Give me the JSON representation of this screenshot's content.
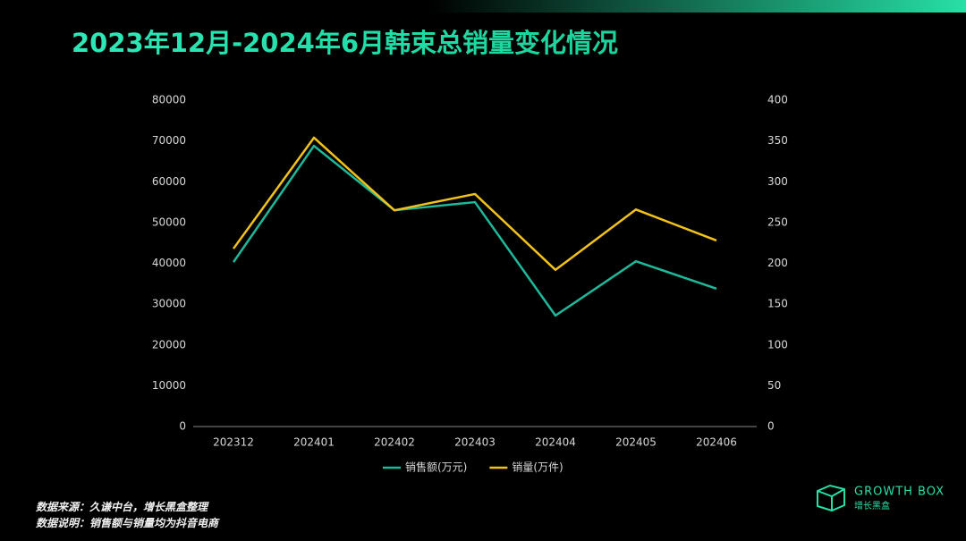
{
  "chart_data": {
    "type": "line",
    "title": "2023年12月-2024年6月韩束总销量变化情况",
    "categories": [
      "202312",
      "202401",
      "202402",
      "202403",
      "202404",
      "202405",
      "202406"
    ],
    "series": [
      {
        "name": "销售额(万元)",
        "color": "#1fb89a",
        "values": [
          40300,
          68800,
          53000,
          55000,
          27200,
          40500,
          33800
        ]
      },
      {
        "name": "销量(万件)",
        "color": "#f2c21b",
        "axis": "y2",
        "values": [
          218,
          354,
          265,
          285,
          192,
          266,
          228
        ]
      }
    ],
    "ylim": [
      0,
      80000
    ],
    "yticks": [
      0,
      10000,
      20000,
      30000,
      40000,
      50000,
      60000,
      70000,
      80000
    ],
    "y2lim": [
      0,
      400
    ],
    "y2ticks": [
      0,
      50,
      100,
      150,
      200,
      250,
      300,
      350,
      400
    ],
    "grid": false,
    "legend": "bottom"
  },
  "footer": {
    "source": "数据来源：久谦中台，增长黑盒整理",
    "note": "数据说明：销售额与销量均为抖音电商"
  },
  "logo": {
    "name": "GROWTH BOX",
    "subtitle": "增长黑盒"
  }
}
